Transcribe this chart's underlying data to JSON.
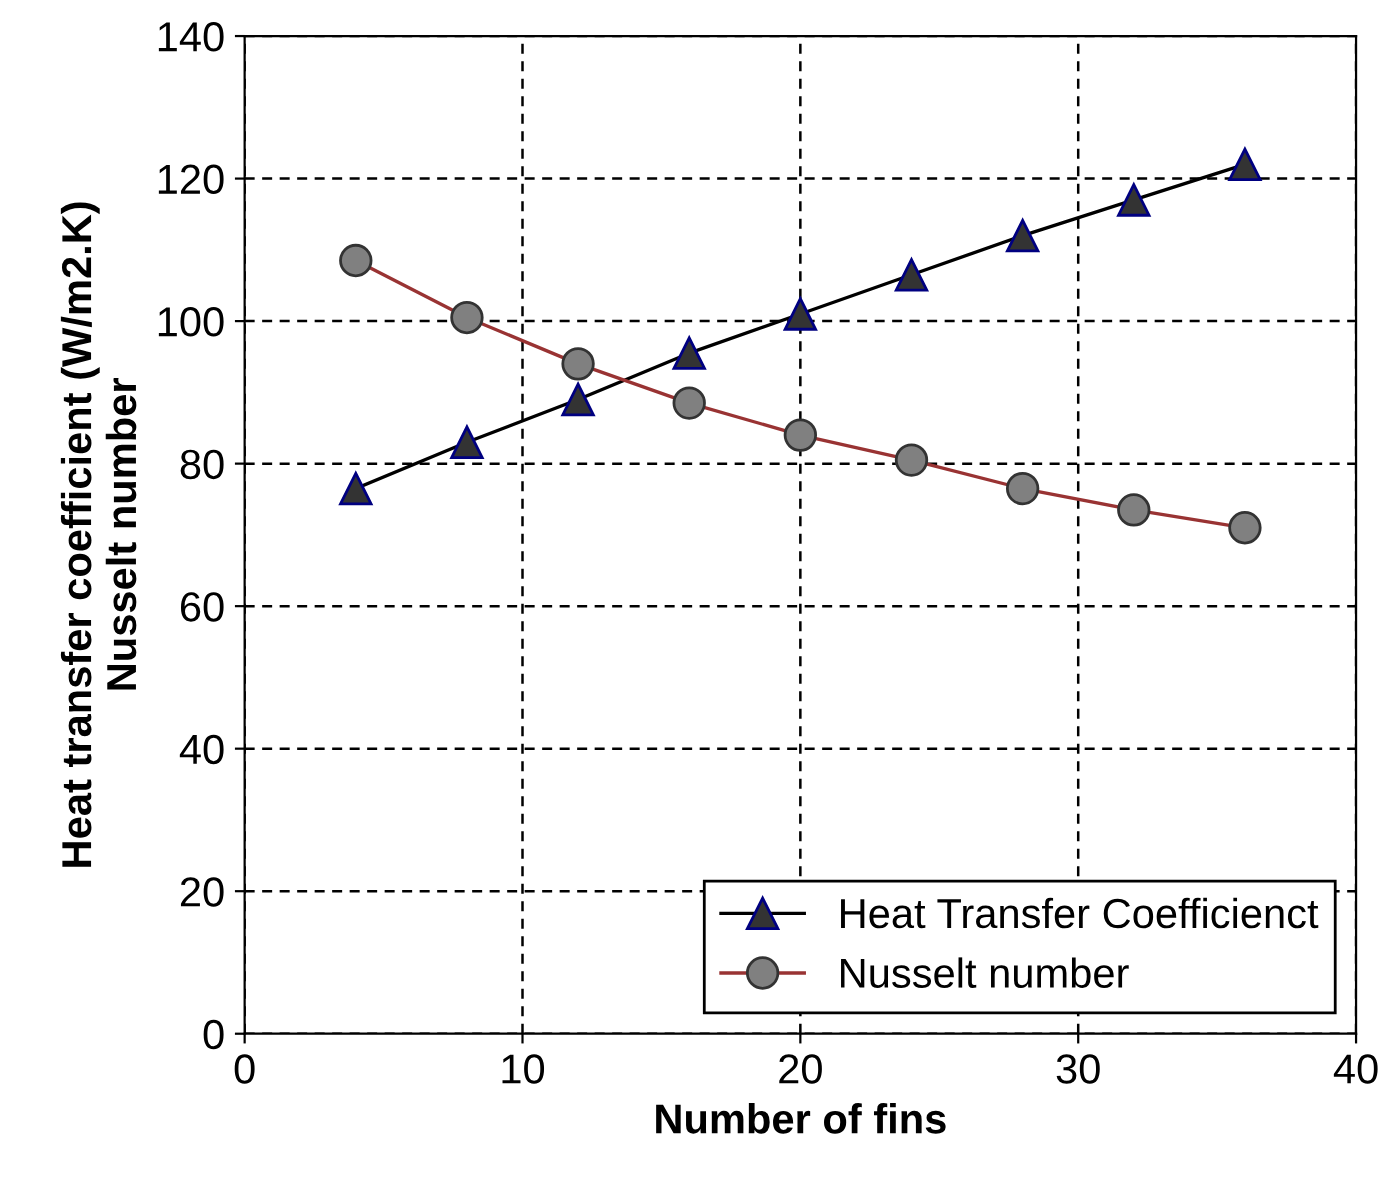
{
  "chart_data": {
    "type": "line",
    "xlabel": "Number of fins",
    "ylabel": "Heat transfer coefficient (W/m2.K)\nNusselt number",
    "x": [
      4,
      8,
      12,
      16,
      20,
      24,
      28,
      32,
      36
    ],
    "series": [
      {
        "name": "Heat Transfer Coefficienct",
        "color": "#000000",
        "marker": "triangle",
        "values": [
          76.5,
          83,
          89,
          95.5,
          101,
          106.5,
          112,
          117,
          122
        ]
      },
      {
        "name": "Nusselt number",
        "color": "#993333",
        "marker": "circle",
        "values": [
          108.5,
          100.5,
          94,
          88.5,
          84,
          80.5,
          76.5,
          73.5,
          71
        ]
      }
    ],
    "xlim": [
      0,
      40
    ],
    "xticks": [
      0,
      10,
      20,
      30,
      40
    ],
    "ylim": [
      0,
      140
    ],
    "yticks": [
      0,
      20,
      40,
      60,
      80,
      100,
      120,
      140
    ],
    "grid": true,
    "legend": "bottom right",
    "line_style": "solid"
  }
}
